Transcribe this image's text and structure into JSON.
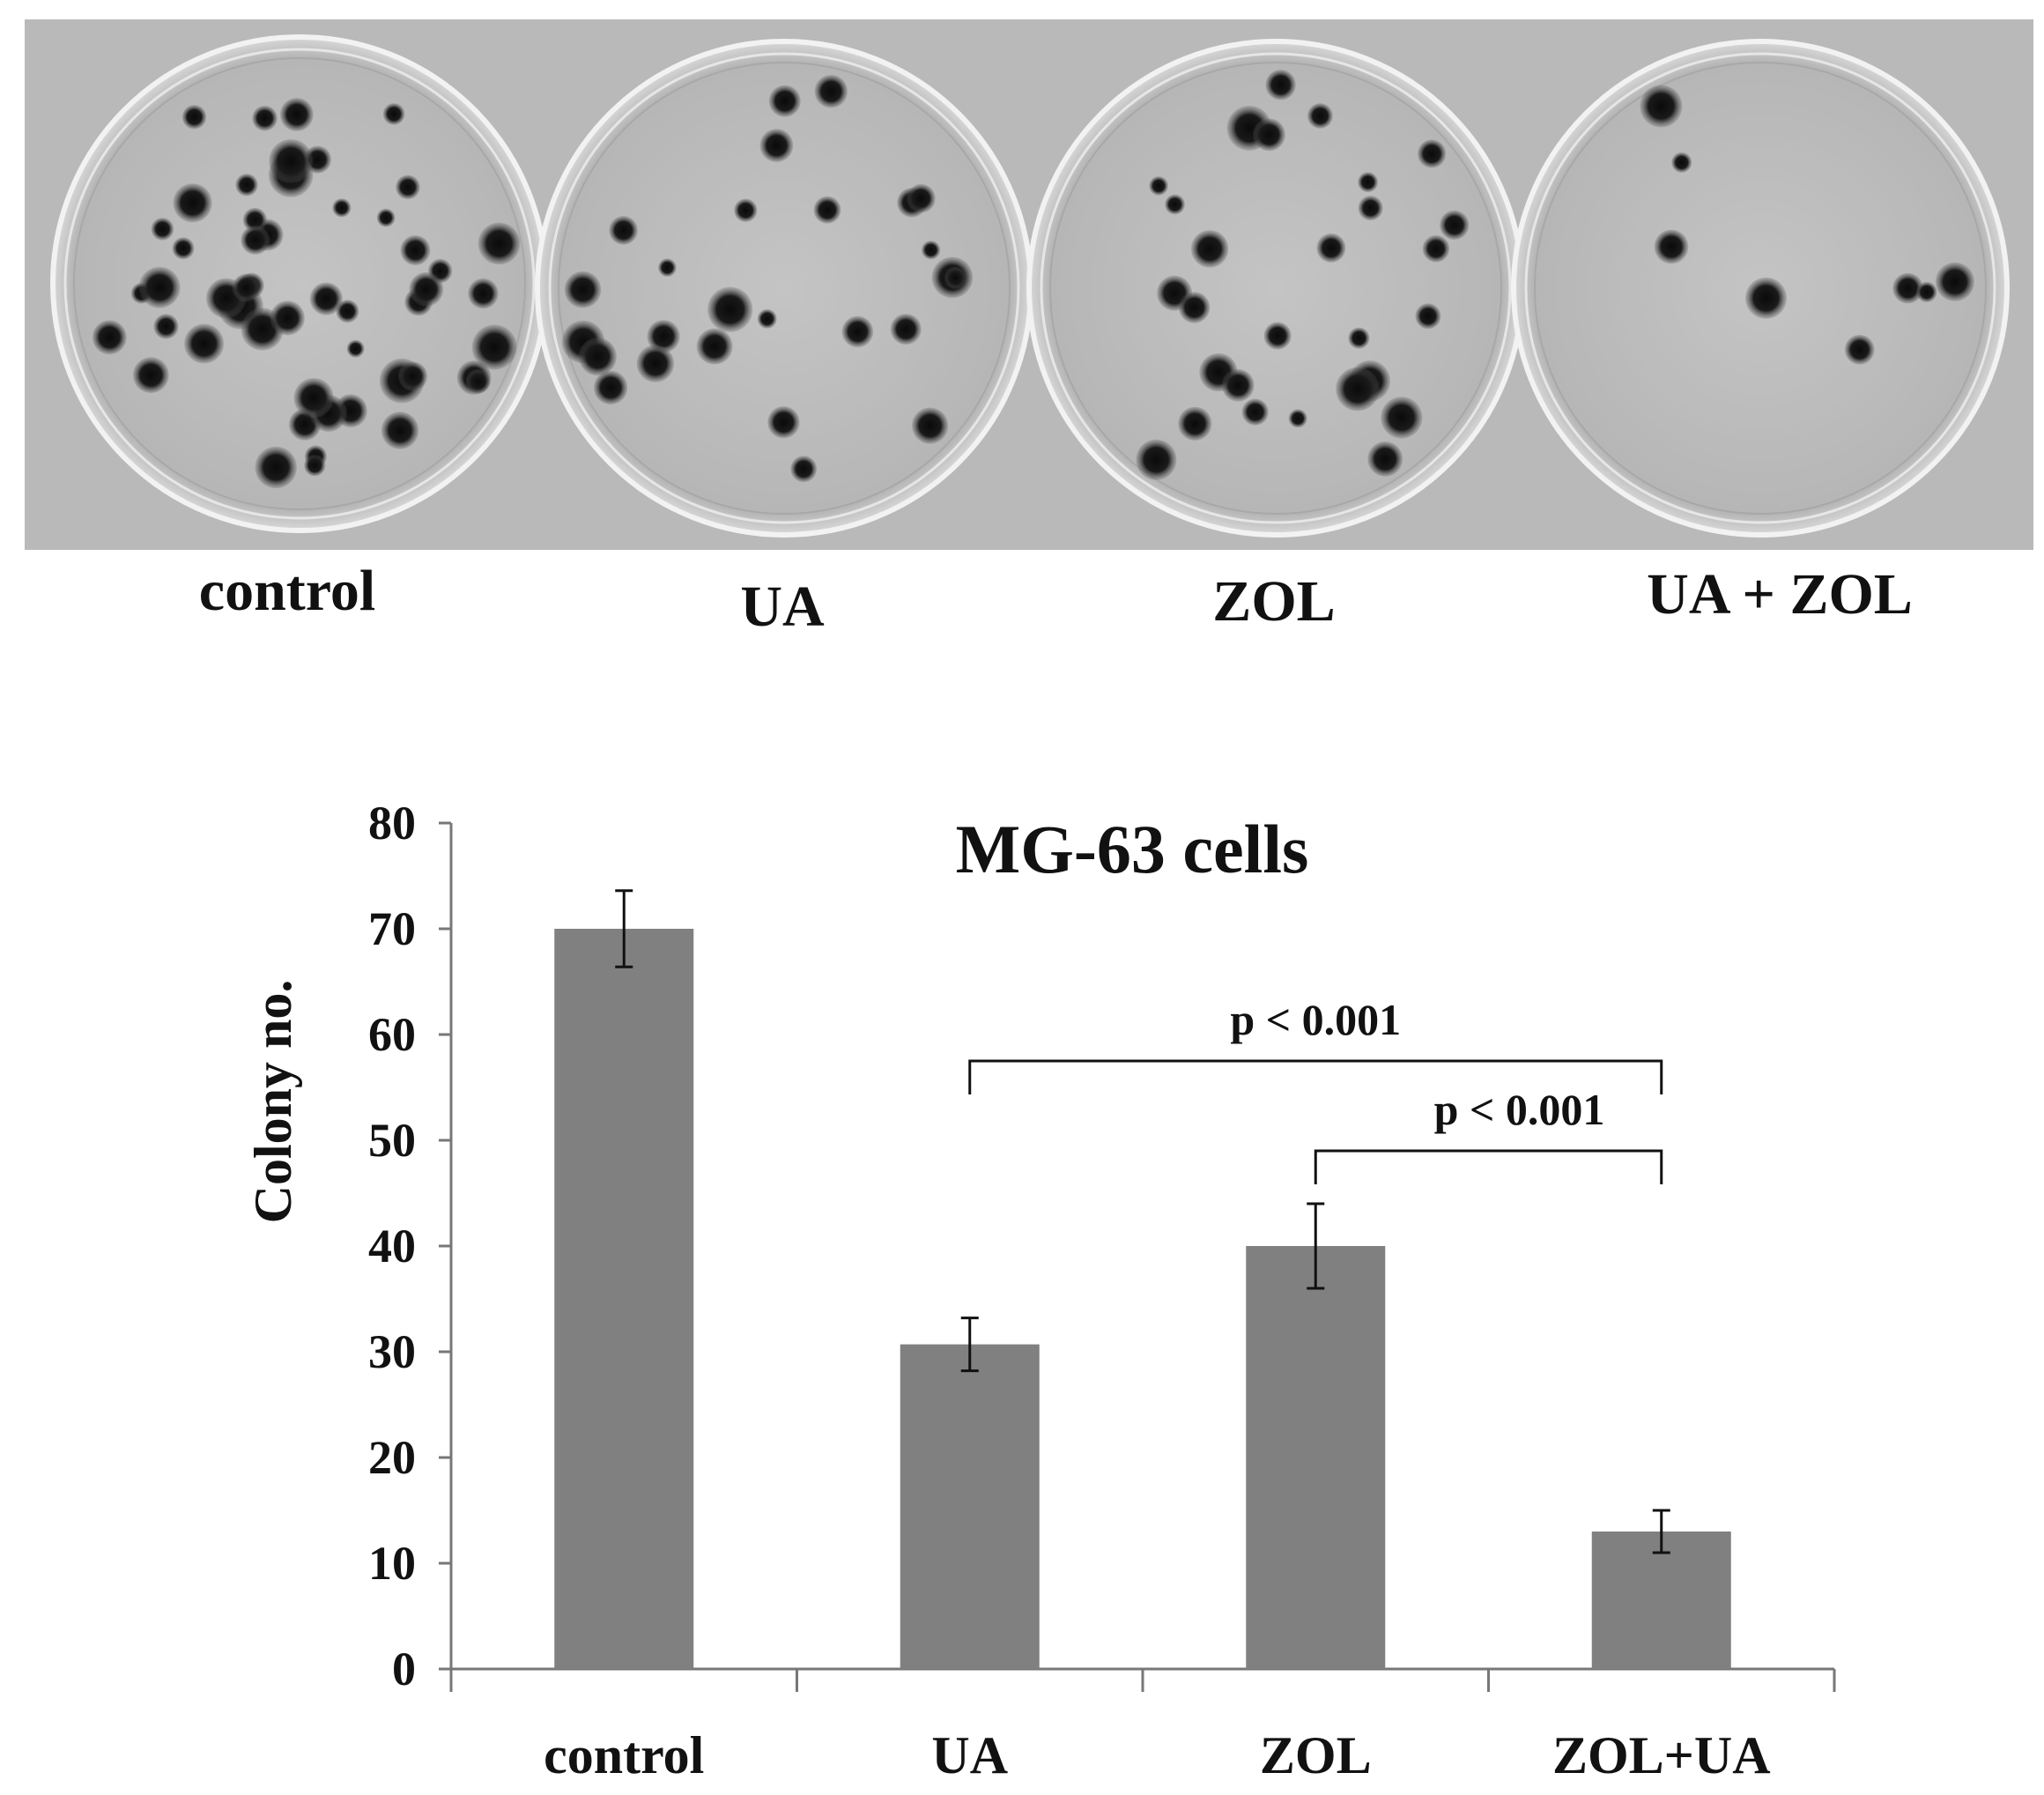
{
  "photo": {
    "labels": [
      "control",
      "UA",
      "ZOL",
      "UA + ZOL"
    ],
    "colony_counts_drawn": [
      52,
      26,
      28,
      8
    ]
  },
  "chart_data": {
    "type": "bar",
    "title": "MG-63 cells",
    "xlabel": "",
    "ylabel": "Colony no.",
    "categories": [
      "control",
      "UA",
      "ZOL",
      "ZOL+UA"
    ],
    "values": [
      70,
      30.7,
      40,
      13
    ],
    "errors": [
      3.6,
      2.5,
      4,
      2
    ],
    "ylim": [
      0,
      80
    ],
    "yticks": [
      0,
      10,
      20,
      30,
      40,
      50,
      60,
      70,
      80
    ],
    "grid": false,
    "legend": "none",
    "bar_color": "#808080",
    "annotations": [
      {
        "from": "UA",
        "to": "ZOL+UA",
        "text": "p < 0.001",
        "level": 57.5
      },
      {
        "from": "ZOL",
        "to": "ZOL+UA",
        "text": "p < 0.001",
        "level": 49
      }
    ]
  }
}
